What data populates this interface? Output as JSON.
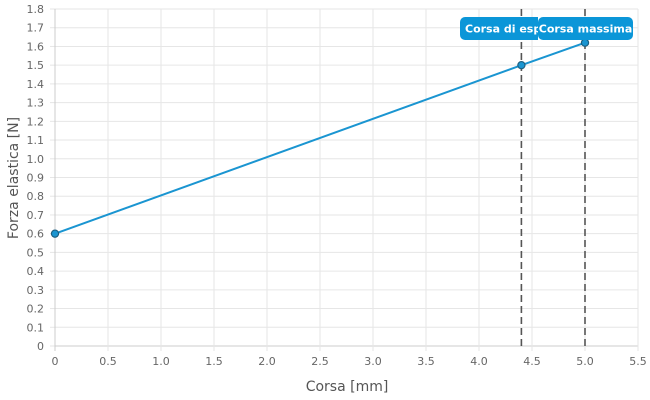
{
  "chart_data": {
    "type": "line",
    "xlabel": "Corsa [mm]",
    "ylabel": "Forza elastica [N]",
    "xlim": [
      0,
      5.5
    ],
    "ylim": [
      0,
      1.8
    ],
    "x_ticks": [
      "0",
      "0.5",
      "1.0",
      "1.5",
      "2.0",
      "2.5",
      "3.0",
      "3.5",
      "4.0",
      "4.5",
      "5.0",
      "5.5"
    ],
    "y_ticks": [
      "0",
      "0.1",
      "0.2",
      "0.3",
      "0.4",
      "0.5",
      "0.6",
      "0.7",
      "0.8",
      "0.9",
      "1.0",
      "1.1",
      "1.2",
      "1.3",
      "1.4",
      "1.5",
      "1.6",
      "1.7",
      "1.8"
    ],
    "grid": true,
    "series": [
      {
        "color": "#1a95d1",
        "points": [
          {
            "x": 0,
            "y": 0.6
          },
          {
            "x": 4.4,
            "y": 1.5
          },
          {
            "x": 5.0,
            "y": 1.62
          }
        ]
      }
    ],
    "annotations": [
      {
        "x": 4.4,
        "label": "Corsa di esp",
        "color": "#0b96d8",
        "line": "dashed"
      },
      {
        "x": 5.0,
        "label": "Corsa massima",
        "color": "#0b96d8",
        "line": "dashed"
      }
    ]
  }
}
